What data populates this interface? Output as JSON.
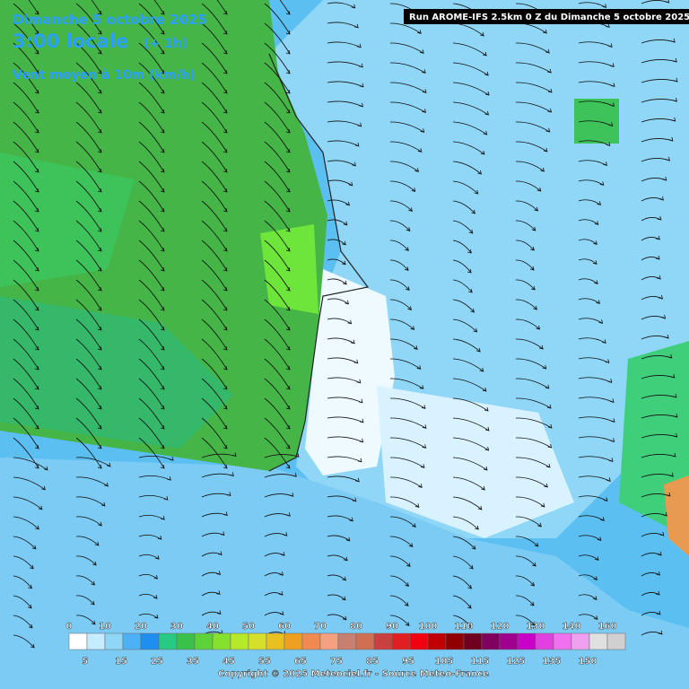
{
  "header": {
    "date": "Dimanche 5 octobre 2025",
    "time": "3:00 locale",
    "offset": "(+ 1h)",
    "parameter": "Vent moyen à 10m (km/h)",
    "run": "Run AROME-IFS 2.5km 0 Z du Dimanche 5 octobre 2025"
  },
  "legend": {
    "upper_labels": [
      0,
      10,
      20,
      30,
      40,
      50,
      60,
      70,
      80,
      90,
      100,
      110,
      120,
      130,
      140,
      160
    ],
    "lower_labels": [
      5,
      15,
      25,
      35,
      45,
      55,
      65,
      75,
      85,
      95,
      105,
      115,
      125,
      135,
      150
    ]
  },
  "footer": {
    "copyright": "Copyright © 2025 Meteociel.fr - Source Meteo-France"
  }
}
